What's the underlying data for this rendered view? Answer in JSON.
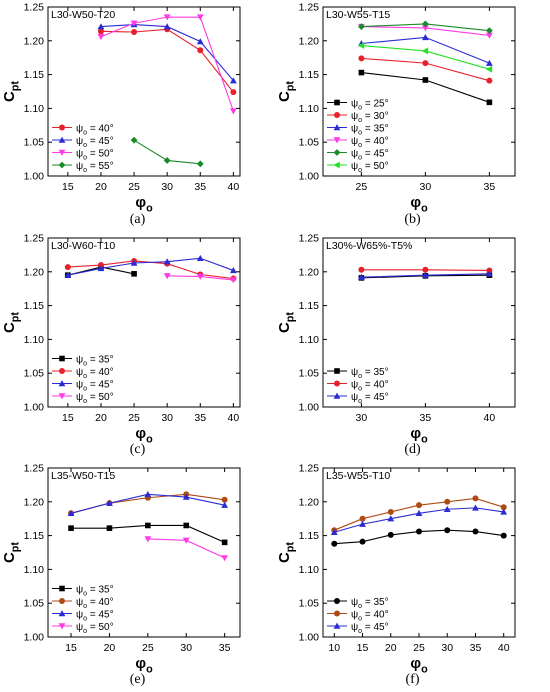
{
  "figure": {
    "y_axis_label": "C",
    "y_axis_label_sub": "pt",
    "x_axis_label": "φ",
    "x_axis_label_sub": "o",
    "legend_symbol": "ψ",
    "legend_symbol_sub": "o"
  },
  "chart_data": [
    {
      "type": "line",
      "panel": "(a)",
      "title": "L30-W50-T20",
      "xlim": [
        12,
        41
      ],
      "ylim": [
        1.0,
        1.25
      ],
      "xticks": [
        15,
        20,
        25,
        30,
        35,
        40
      ],
      "yticks": [
        1.0,
        1.05,
        1.1,
        1.15,
        1.2,
        1.25
      ],
      "grid": false,
      "legend_position": "bottom-left",
      "series": [
        {
          "name": "= 40°",
          "color": "#e8202a",
          "marker": "circle",
          "x": [
            20,
            25,
            30,
            35,
            40
          ],
          "y": [
            1.214,
            1.213,
            1.217,
            1.186,
            1.124
          ]
        },
        {
          "name": "= 45°",
          "color": "#2b2bd6",
          "marker": "triangle-up",
          "x": [
            20,
            25,
            30,
            35,
            40
          ],
          "y": [
            1.221,
            1.224,
            1.221,
            1.199,
            1.141
          ]
        },
        {
          "name": "= 50°",
          "color": "#ff3ae6",
          "marker": "triangle-down",
          "x": [
            20,
            25,
            30,
            35,
            40
          ],
          "y": [
            1.206,
            1.226,
            1.235,
            1.235,
            1.096
          ]
        },
        {
          "name": "= 55°",
          "color": "#1a8a2a",
          "marker": "diamond",
          "x": [
            25,
            30,
            35
          ],
          "y": [
            1.053,
            1.023,
            1.018
          ]
        }
      ]
    },
    {
      "type": "line",
      "panel": "(b)",
      "title": "L30-W55-T15",
      "xlim": [
        22,
        37
      ],
      "ylim": [
        1.0,
        1.25
      ],
      "xticks": [
        25,
        30,
        35
      ],
      "yticks": [
        1.0,
        1.05,
        1.1,
        1.15,
        1.2,
        1.25
      ],
      "grid": false,
      "legend_position": "bottom-left",
      "series": [
        {
          "name": "= 25°",
          "color": "#000000",
          "marker": "square",
          "x": [
            25,
            30,
            35
          ],
          "y": [
            1.153,
            1.142,
            1.109
          ]
        },
        {
          "name": "= 30°",
          "color": "#e8202a",
          "marker": "circle",
          "x": [
            25,
            30,
            35
          ],
          "y": [
            1.174,
            1.167,
            1.141
          ]
        },
        {
          "name": "= 35°",
          "color": "#2b2bd6",
          "marker": "triangle-up",
          "x": [
            25,
            30,
            35
          ],
          "y": [
            1.196,
            1.205,
            1.167
          ]
        },
        {
          "name": "= 40°",
          "color": "#ff3ae6",
          "marker": "triangle-down",
          "x": [
            25,
            30,
            35
          ],
          "y": [
            1.221,
            1.219,
            1.208
          ]
        },
        {
          "name": "= 45°",
          "color": "#1a8a2a",
          "marker": "diamond",
          "x": [
            25,
            30,
            35
          ],
          "y": [
            1.221,
            1.225,
            1.215
          ]
        },
        {
          "name": "= 50°",
          "color": "#22e022",
          "marker": "triangle-left",
          "x": [
            25,
            30,
            35
          ],
          "y": [
            1.193,
            1.185,
            1.158
          ]
        }
      ]
    },
    {
      "type": "line",
      "panel": "(c)",
      "title": "L30-W60-T10",
      "xlim": [
        12,
        41
      ],
      "ylim": [
        1.0,
        1.25
      ],
      "xticks": [
        15,
        20,
        25,
        30,
        35,
        40
      ],
      "yticks": [
        1.0,
        1.05,
        1.1,
        1.15,
        1.2,
        1.25
      ],
      "grid": false,
      "legend_position": "bottom-left",
      "series": [
        {
          "name": "= 35°",
          "color": "#000000",
          "marker": "square",
          "x": [
            15,
            20,
            25
          ],
          "y": [
            1.195,
            1.207,
            1.197
          ]
        },
        {
          "name": "= 40°",
          "color": "#e8202a",
          "marker": "circle",
          "x": [
            15,
            20,
            25,
            30,
            35,
            40
          ],
          "y": [
            1.207,
            1.21,
            1.216,
            1.212,
            1.196,
            1.19
          ]
        },
        {
          "name": "= 45°",
          "color": "#2b2bd6",
          "marker": "triangle-up",
          "x": [
            15,
            20,
            25,
            30,
            35,
            40
          ],
          "y": [
            1.195,
            1.205,
            1.213,
            1.215,
            1.22,
            1.202
          ]
        },
        {
          "name": "= 50°",
          "color": "#ff3ae6",
          "marker": "triangle-down",
          "x": [
            30,
            35,
            40
          ],
          "y": [
            1.194,
            1.193,
            1.188
          ]
        }
      ]
    },
    {
      "type": "line",
      "panel": "(d)",
      "title": "L30%-W65%-T5%",
      "xlim": [
        27,
        42
      ],
      "ylim": [
        1.0,
        1.25
      ],
      "xticks": [
        30,
        35,
        40
      ],
      "yticks": [
        1.0,
        1.05,
        1.1,
        1.15,
        1.2,
        1.25
      ],
      "grid": false,
      "legend_position": "bottom-left",
      "series": [
        {
          "name": "= 35°",
          "color": "#000000",
          "marker": "square",
          "x": [
            30,
            35,
            40
          ],
          "y": [
            1.191,
            1.194,
            1.195
          ]
        },
        {
          "name": "= 40°",
          "color": "#e8202a",
          "marker": "circle",
          "x": [
            30,
            35,
            40
          ],
          "y": [
            1.203,
            1.203,
            1.202
          ]
        },
        {
          "name": "= 45°",
          "color": "#2b2bd6",
          "marker": "triangle-up",
          "x": [
            30,
            35,
            40
          ],
          "y": [
            1.192,
            1.195,
            1.197
          ]
        }
      ]
    },
    {
      "type": "line",
      "panel": "(e)",
      "title": "L35-W50-T15",
      "xlim": [
        12,
        37
      ],
      "ylim": [
        1.0,
        1.25
      ],
      "xticks": [
        15,
        20,
        25,
        30,
        35
      ],
      "yticks": [
        1.0,
        1.05,
        1.1,
        1.15,
        1.2,
        1.25
      ],
      "grid": false,
      "legend_position": "bottom-left",
      "series": [
        {
          "name": "= 35°",
          "color": "#000000",
          "marker": "square",
          "x": [
            15,
            20,
            25,
            30,
            35
          ],
          "y": [
            1.161,
            1.161,
            1.165,
            1.165,
            1.14
          ]
        },
        {
          "name": "= 40°",
          "color": "#b04a14",
          "marker": "circle",
          "x": [
            15,
            20,
            25,
            30,
            35
          ],
          "y": [
            1.183,
            1.198,
            1.206,
            1.211,
            1.203
          ]
        },
        {
          "name": "= 45°",
          "color": "#2b2bd6",
          "marker": "triangle-up",
          "x": [
            15,
            20,
            25,
            30,
            35
          ],
          "y": [
            1.183,
            1.198,
            1.211,
            1.207,
            1.195
          ]
        },
        {
          "name": "= 50°",
          "color": "#ff3ae6",
          "marker": "triangle-down",
          "x": [
            25,
            30,
            35
          ],
          "y": [
            1.145,
            1.143,
            1.117
          ]
        }
      ]
    },
    {
      "type": "line",
      "panel": "(f)",
      "title": "L35-W55-T10",
      "xlim": [
        8,
        42
      ],
      "ylim": [
        1.0,
        1.25
      ],
      "xticks": [
        10,
        15,
        20,
        25,
        30,
        35,
        40
      ],
      "yticks": [
        1.0,
        1.05,
        1.1,
        1.15,
        1.2,
        1.25
      ],
      "grid": false,
      "legend_position": "bottom-left",
      "series": [
        {
          "name": "= 35°",
          "color": "#000000",
          "marker": "circle",
          "x": [
            10,
            15,
            20,
            25,
            30,
            35,
            40
          ],
          "y": [
            1.138,
            1.141,
            1.151,
            1.156,
            1.158,
            1.156,
            1.15
          ]
        },
        {
          "name": "= 40°",
          "color": "#b04a14",
          "marker": "circle",
          "x": [
            10,
            15,
            20,
            25,
            30,
            35,
            40
          ],
          "y": [
            1.158,
            1.175,
            1.185,
            1.195,
            1.2,
            1.205,
            1.192
          ]
        },
        {
          "name": "= 45°",
          "color": "#2b2bd6",
          "marker": "triangle-up",
          "x": [
            10,
            15,
            20,
            25,
            30,
            35,
            40
          ],
          "y": [
            1.155,
            1.167,
            1.175,
            1.183,
            1.189,
            1.191,
            1.185
          ]
        }
      ]
    }
  ]
}
